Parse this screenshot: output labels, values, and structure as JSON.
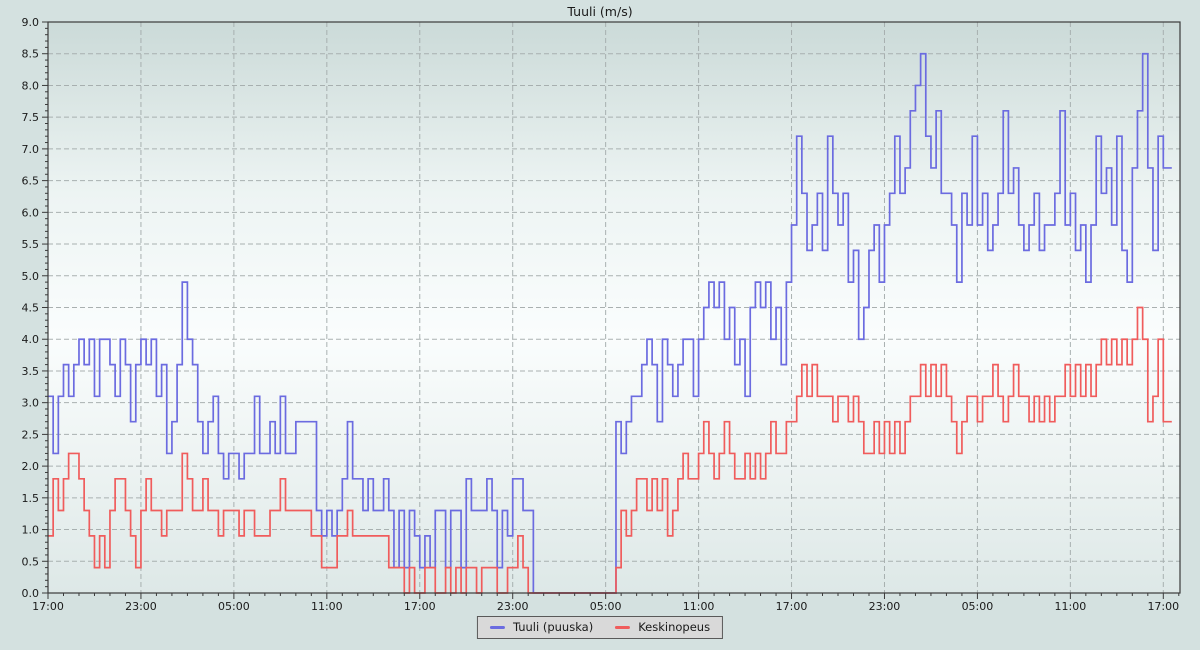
{
  "title": "Tuuli (m/s)",
  "legend": [
    {
      "label": "Tuuli (puuska)",
      "color": "#6b6be0"
    },
    {
      "label": "Keskinopeus",
      "color": "#f05c5c"
    }
  ],
  "colors": {
    "figure_background": "#d4e1e0",
    "plot_gradient_top": "#cbdad8",
    "plot_gradient_mid": "#fafdfd",
    "plot_gradient_bottom": "#dde8e7",
    "grid": "#a5adad",
    "axis": "#3a3a3a",
    "tick_label": "#1a1a1a",
    "legend_background": "#d9d9d9",
    "legend_border": "#595959",
    "gust_line": "#6b6be0",
    "average_line": "#f05c5c"
  },
  "chart_data": {
    "type": "line",
    "step": true,
    "title": "Tuuli (m/s)",
    "xlabel": "",
    "ylabel": "",
    "ylim": [
      0,
      9
    ],
    "y_tick_step": 0.5,
    "y_minor_step": 0.1,
    "y_tick_labels": [
      "0.0",
      "0.5",
      "1.0",
      "1.5",
      "2.0",
      "2.5",
      "3.0",
      "3.5",
      "4.0",
      "4.5",
      "5.0",
      "5.5",
      "6.0",
      "6.5",
      "7.0",
      "7.5",
      "8.0",
      "8.5",
      "9.0"
    ],
    "x_span_hours": 72,
    "x_minor_step_hours": 1,
    "x_tick_hours": [
      0,
      6,
      12,
      18,
      24,
      30,
      36,
      42,
      48,
      54,
      60,
      66,
      72
    ],
    "x_tick_labels": [
      "17:00",
      "23:00",
      "05:00",
      "11:00",
      "17:00",
      "23:00",
      "05:00",
      "11:00",
      "17:00",
      "23:00",
      "05:00",
      "11:00",
      "17:00"
    ],
    "sample_interval_minutes": 20,
    "grid": "dashed",
    "legend_position": "bottom-center",
    "series": [
      {
        "name": "Tuuli (puuska)",
        "color": "#6b6be0",
        "values": [
          3.1,
          2.2,
          3.1,
          3.6,
          3.1,
          3.6,
          4.0,
          3.6,
          4.0,
          3.1,
          4.0,
          4.0,
          3.6,
          3.1,
          4.0,
          3.6,
          2.7,
          3.6,
          4.0,
          3.6,
          4.0,
          3.1,
          3.6,
          2.2,
          2.7,
          3.6,
          4.9,
          4.0,
          3.6,
          2.7,
          2.2,
          2.7,
          3.1,
          2.2,
          1.8,
          2.2,
          2.2,
          1.8,
          2.2,
          2.2,
          3.1,
          2.2,
          2.2,
          2.7,
          2.2,
          3.1,
          2.2,
          2.2,
          2.7,
          2.7,
          2.7,
          2.7,
          1.3,
          0.9,
          1.3,
          0.9,
          1.3,
          1.8,
          2.7,
          1.8,
          1.8,
          1.3,
          1.8,
          1.3,
          1.3,
          1.8,
          1.3,
          0.4,
          1.3,
          0.4,
          1.3,
          0.9,
          0.4,
          0.9,
          0.4,
          1.3,
          1.3,
          0.4,
          1.3,
          1.3,
          0.4,
          1.8,
          1.3,
          1.3,
          1.3,
          1.8,
          1.3,
          0.4,
          1.3,
          0.9,
          1.8,
          1.8,
          1.3,
          1.3,
          0.0,
          0.0,
          0.0,
          0.0,
          0.0,
          0.0,
          0.0,
          0.0,
          0.0,
          0.0,
          0.0,
          0.0,
          0.0,
          0.0,
          0.0,
          0.0,
          2.7,
          2.2,
          2.7,
          3.1,
          3.1,
          3.6,
          4.0,
          3.6,
          2.7,
          4.0,
          3.6,
          3.1,
          3.6,
          4.0,
          4.0,
          3.1,
          4.0,
          4.5,
          4.9,
          4.5,
          4.9,
          4.0,
          4.5,
          3.6,
          4.0,
          3.1,
          4.5,
          4.9,
          4.5,
          4.9,
          4.0,
          4.5,
          3.6,
          4.9,
          5.8,
          7.2,
          6.3,
          5.4,
          5.8,
          6.3,
          5.4,
          7.2,
          6.3,
          5.8,
          6.3,
          4.9,
          5.4,
          4.0,
          4.5,
          5.4,
          5.8,
          4.9,
          5.8,
          6.3,
          7.2,
          6.3,
          6.7,
          7.6,
          8.0,
          8.5,
          7.2,
          6.7,
          7.6,
          6.3,
          6.3,
          5.8,
          4.9,
          6.3,
          5.8,
          7.2,
          5.8,
          6.3,
          5.4,
          5.8,
          6.3,
          7.6,
          6.3,
          6.7,
          5.8,
          5.4,
          5.8,
          6.3,
          5.4,
          5.8,
          5.8,
          6.3,
          7.6,
          5.8,
          6.3,
          5.4,
          5.8,
          4.9,
          5.8,
          7.2,
          6.3,
          6.7,
          5.8,
          7.2,
          5.4,
          4.9,
          6.7,
          7.6,
          8.5,
          6.7,
          5.4,
          7.2,
          6.7
        ]
      },
      {
        "name": "Keskinopeus",
        "color": "#f05c5c",
        "values": [
          0.9,
          1.8,
          1.3,
          1.8,
          2.2,
          2.2,
          1.8,
          1.3,
          0.9,
          0.4,
          0.9,
          0.4,
          1.3,
          1.8,
          1.8,
          1.3,
          0.9,
          0.4,
          1.3,
          1.8,
          1.3,
          1.3,
          0.9,
          1.3,
          1.3,
          1.3,
          2.2,
          1.8,
          1.3,
          1.3,
          1.8,
          1.3,
          1.3,
          0.9,
          1.3,
          1.3,
          1.3,
          0.9,
          1.3,
          1.3,
          0.9,
          0.9,
          0.9,
          1.3,
          1.3,
          1.8,
          1.3,
          1.3,
          1.3,
          1.3,
          1.3,
          0.9,
          0.9,
          0.4,
          0.4,
          0.4,
          0.9,
          0.9,
          1.3,
          0.9,
          0.9,
          0.9,
          0.9,
          0.9,
          0.9,
          0.9,
          0.4,
          0.4,
          0.4,
          0.0,
          0.4,
          0.0,
          0.0,
          0.4,
          0.4,
          0.0,
          0.0,
          0.4,
          0.0,
          0.4,
          0.0,
          0.4,
          0.4,
          0.0,
          0.4,
          0.4,
          0.4,
          0.0,
          0.0,
          0.4,
          0.4,
          0.9,
          0.4,
          0.0,
          0.0,
          0.0,
          0.0,
          0.0,
          0.0,
          0.0,
          0.0,
          0.0,
          0.0,
          0.0,
          0.0,
          0.0,
          0.0,
          0.0,
          0.0,
          0.0,
          0.4,
          1.3,
          0.9,
          1.3,
          1.8,
          1.8,
          1.3,
          1.8,
          1.3,
          1.8,
          0.9,
          1.3,
          1.8,
          2.2,
          1.8,
          1.8,
          2.2,
          2.7,
          2.2,
          1.8,
          2.2,
          2.7,
          2.2,
          1.8,
          1.8,
          2.2,
          1.8,
          2.2,
          1.8,
          2.2,
          2.7,
          2.2,
          2.2,
          2.7,
          2.7,
          3.1,
          3.6,
          3.1,
          3.6,
          3.1,
          3.1,
          3.1,
          2.7,
          3.1,
          3.1,
          2.7,
          3.1,
          2.7,
          2.2,
          2.2,
          2.7,
          2.2,
          2.7,
          2.2,
          2.7,
          2.2,
          2.7,
          3.1,
          3.1,
          3.6,
          3.1,
          3.6,
          3.1,
          3.6,
          3.1,
          2.7,
          2.2,
          2.7,
          3.1,
          3.1,
          2.7,
          3.1,
          3.1,
          3.6,
          3.1,
          2.7,
          3.1,
          3.6,
          3.1,
          3.1,
          2.7,
          3.1,
          2.7,
          3.1,
          2.7,
          3.1,
          3.1,
          3.6,
          3.1,
          3.6,
          3.1,
          3.6,
          3.1,
          3.6,
          4.0,
          3.6,
          4.0,
          3.6,
          4.0,
          3.6,
          4.0,
          4.5,
          4.0,
          2.7,
          3.1,
          4.0,
          2.7
        ]
      }
    ]
  }
}
